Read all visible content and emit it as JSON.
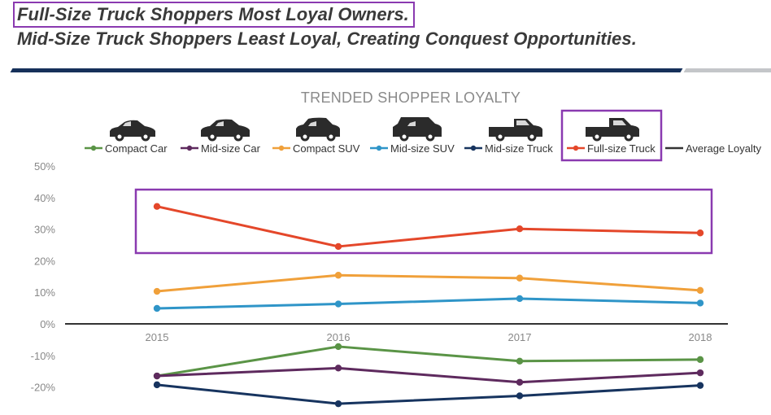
{
  "headline": {
    "line1": "Full-Size Truck Shoppers Most Loyal Owners.",
    "line2": "Mid-Size Truck Shoppers Least Loyal, Creating Conquest Opportunities."
  },
  "colors": {
    "title_text": "#3a3a3a",
    "highlight_box": "#8a3ab0",
    "rule_dark": "#16305a",
    "rule_light": "#c4c6c9",
    "axis_text": "#888888",
    "zero_line": "#333333"
  },
  "chart_data": {
    "type": "line",
    "title": "TRENDED SHOPPER LOYALTY",
    "x": [
      "2015",
      "2016",
      "2017",
      "2018"
    ],
    "yticks": [
      "50%",
      "40%",
      "30%",
      "20%",
      "10%",
      "0%",
      "-10%",
      "-20%"
    ],
    "ylim": [
      -25,
      50
    ],
    "grid": false,
    "legend_position": "top",
    "series": [
      {
        "name": "Compact Car",
        "color": "#5a9446",
        "icon": "sedan-car-icon",
        "values": [
          -16.5,
          -7.2,
          -11.8,
          -11.3
        ]
      },
      {
        "name": "Mid-size Car",
        "color": "#5e2a5e",
        "icon": "midsize-car-icon",
        "values": [
          -16.5,
          -14.0,
          -18.5,
          -15.5
        ]
      },
      {
        "name": "Compact SUV",
        "color": "#f0a03a",
        "icon": "compact-suv-icon",
        "values": [
          10.3,
          15.4,
          14.5,
          10.6
        ]
      },
      {
        "name": "Mid-size SUV",
        "color": "#2f95c8",
        "icon": "midsize-suv-icon",
        "values": [
          4.9,
          6.3,
          8.0,
          6.6
        ]
      },
      {
        "name": "Mid-size Truck",
        "color": "#17345f",
        "icon": "midsize-truck-icon",
        "values": [
          -19.3,
          -25.3,
          -22.8,
          -19.5
        ]
      },
      {
        "name": "Full-size Truck",
        "color": "#e4472a",
        "icon": "fullsize-truck-icon",
        "values": [
          37.2,
          24.5,
          30.1,
          28.8
        ]
      },
      {
        "name": "Average Loyalty",
        "color": "#333333",
        "values": [
          0,
          0,
          0,
          0
        ]
      }
    ]
  }
}
